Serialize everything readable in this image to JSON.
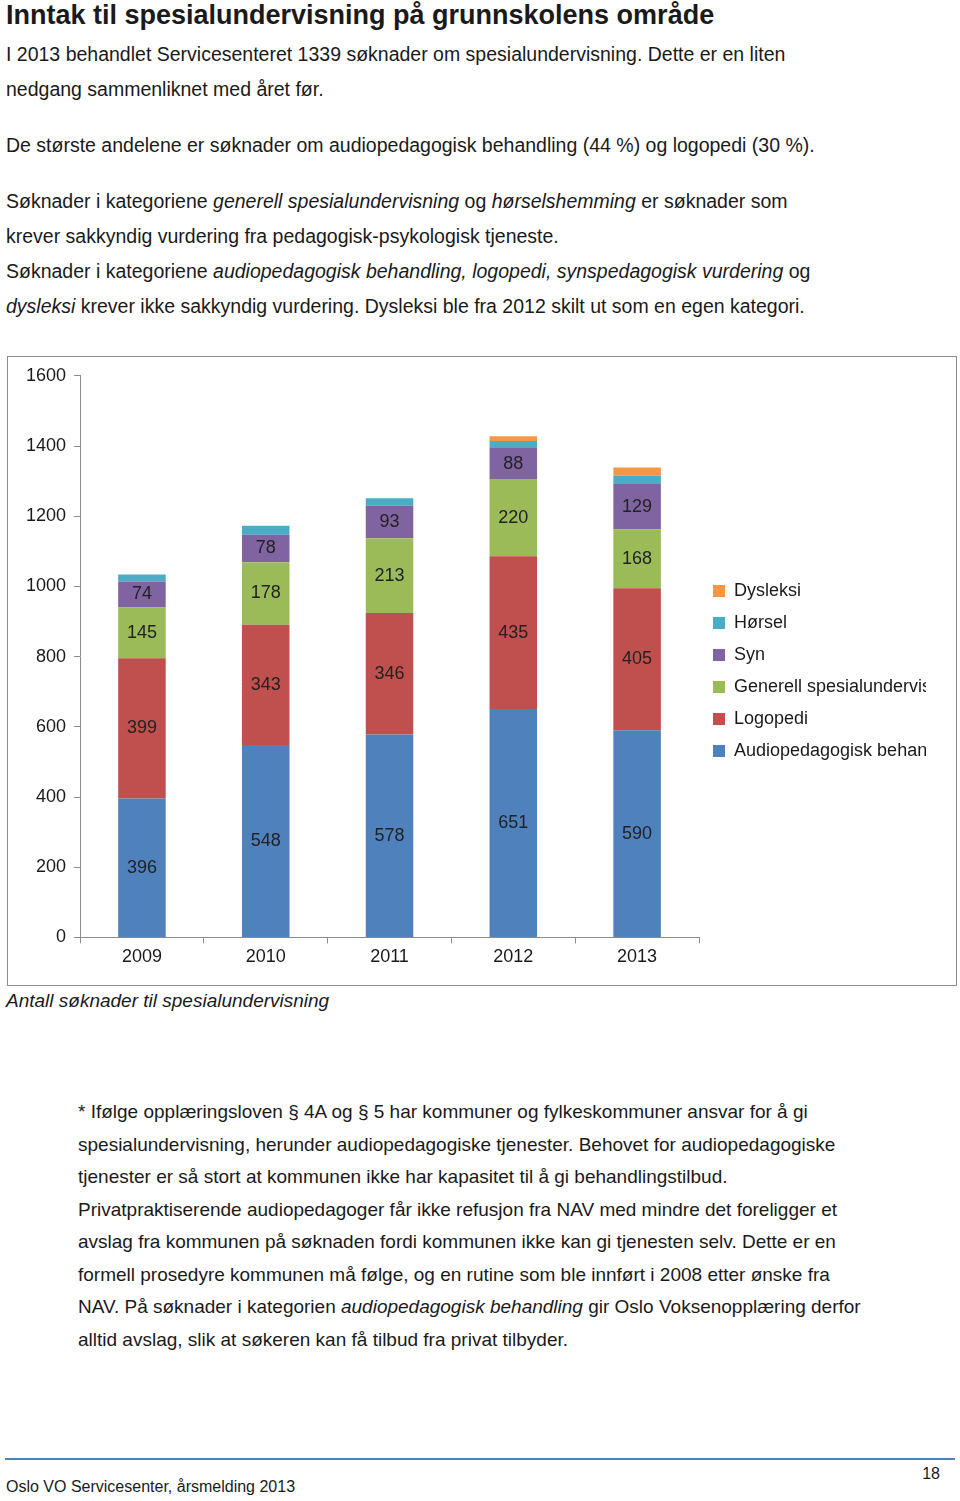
{
  "heading": "Inntak til spesialundervisning på grunnskolens område",
  "intro": [
    [
      [
        "I 2013 behandlet Servicesenteret 1339 søknader om spesialundervisning. Dette er en liten"
      ],
      [
        "nedgang sammenliknet med året før."
      ]
    ],
    [
      [
        "De største andelene er søknader om audiopedagogisk behandling (44 %) og logopedi (30 %)."
      ]
    ],
    [
      [
        "Søknader i kategoriene ",
        {
          "text": "generell spesialundervisning",
          "italic": true
        },
        " og ",
        {
          "text": "hørselshemming",
          "italic": true
        },
        " er søknader som"
      ],
      [
        "krever sakkyndig vurdering fra pedagogisk-psykologisk tjeneste."
      ]
    ],
    [
      [
        "Søknader i kategoriene ",
        {
          "text": "audiopedagogisk behandling, logopedi, synspedagogisk vurdering",
          "italic": true
        },
        " og"
      ],
      [
        {
          "text": "dysleksi",
          "italic": true
        },
        " krever ikke sakkyndig vurdering. Dysleksi ble fra 2012 skilt ut som en egen kategori."
      ]
    ]
  ],
  "chart_data": {
    "type": "bar",
    "stacked": true,
    "grid": false,
    "legend": "right",
    "categories": [
      "2009",
      "2010",
      "2011",
      "2012",
      "2013"
    ],
    "ylim": [
      0,
      1600
    ],
    "yticks": [
      0,
      200,
      400,
      600,
      800,
      1000,
      1200,
      1400,
      1600
    ],
    "series": [
      {
        "name": "Audiopedagogisk behandling *",
        "color": "#4f81bd",
        "data_labels": true,
        "values": [
          396,
          548,
          578,
          651,
          590
        ]
      },
      {
        "name": "Logopedi",
        "color": "#c0504d",
        "data_labels": true,
        "values": [
          399,
          343,
          346,
          435,
          405
        ]
      },
      {
        "name": "Generell spesialundervisning",
        "color": "#9bbb59",
        "data_labels": true,
        "values": [
          145,
          178,
          213,
          220,
          168
        ]
      },
      {
        "name": "Syn",
        "color": "#8064a2",
        "data_labels": true,
        "values": [
          74,
          78,
          93,
          88,
          129
        ]
      },
      {
        "name": "Hørsel",
        "color": "#4bacc6",
        "data_labels": false,
        "values": [
          20,
          26,
          21,
          20,
          24
        ]
      },
      {
        "name": "Dysleksi",
        "color": "#f79646",
        "data_labels": false,
        "values": [
          null,
          null,
          null,
          14,
          23
        ]
      }
    ]
  },
  "chart_caption": "Antall søknader til spesialundervisning",
  "footnote": [
    [
      "* Ifølge opplæringsloven § 4A og § 5 har kommuner og fylkeskommuner ansvar for å gi"
    ],
    [
      "spesialundervisning, herunder audiopedagogiske tjenester. Behovet for audiopedagogiske"
    ],
    [
      "tjenester er så stort at kommunen ikke har kapasitet til å gi behandlingstilbud."
    ],
    [
      "Privatpraktiserende audiopedagoger får ikke refusjon fra NAV med mindre det foreligger et"
    ],
    [
      "avslag fra kommunen på søknaden fordi kommunen ikke kan gi tjenesten selv. Dette er en"
    ],
    [
      "formell prosedyre kommunen må følge, og en rutine som ble innført i 2008 etter ønske fra"
    ],
    [
      "NAV. På søknader i kategorien ",
      {
        "text": "audiopedagogisk behandling",
        "italic": true
      },
      " gir Oslo Voksenopplæring derfor"
    ],
    [
      "alltid avslag, slik at søkeren kan få tilbud fra privat tilbyder."
    ]
  ],
  "footer": {
    "text": "Oslo VO Servicesenter, årsmelding 2013",
    "page": "18"
  }
}
